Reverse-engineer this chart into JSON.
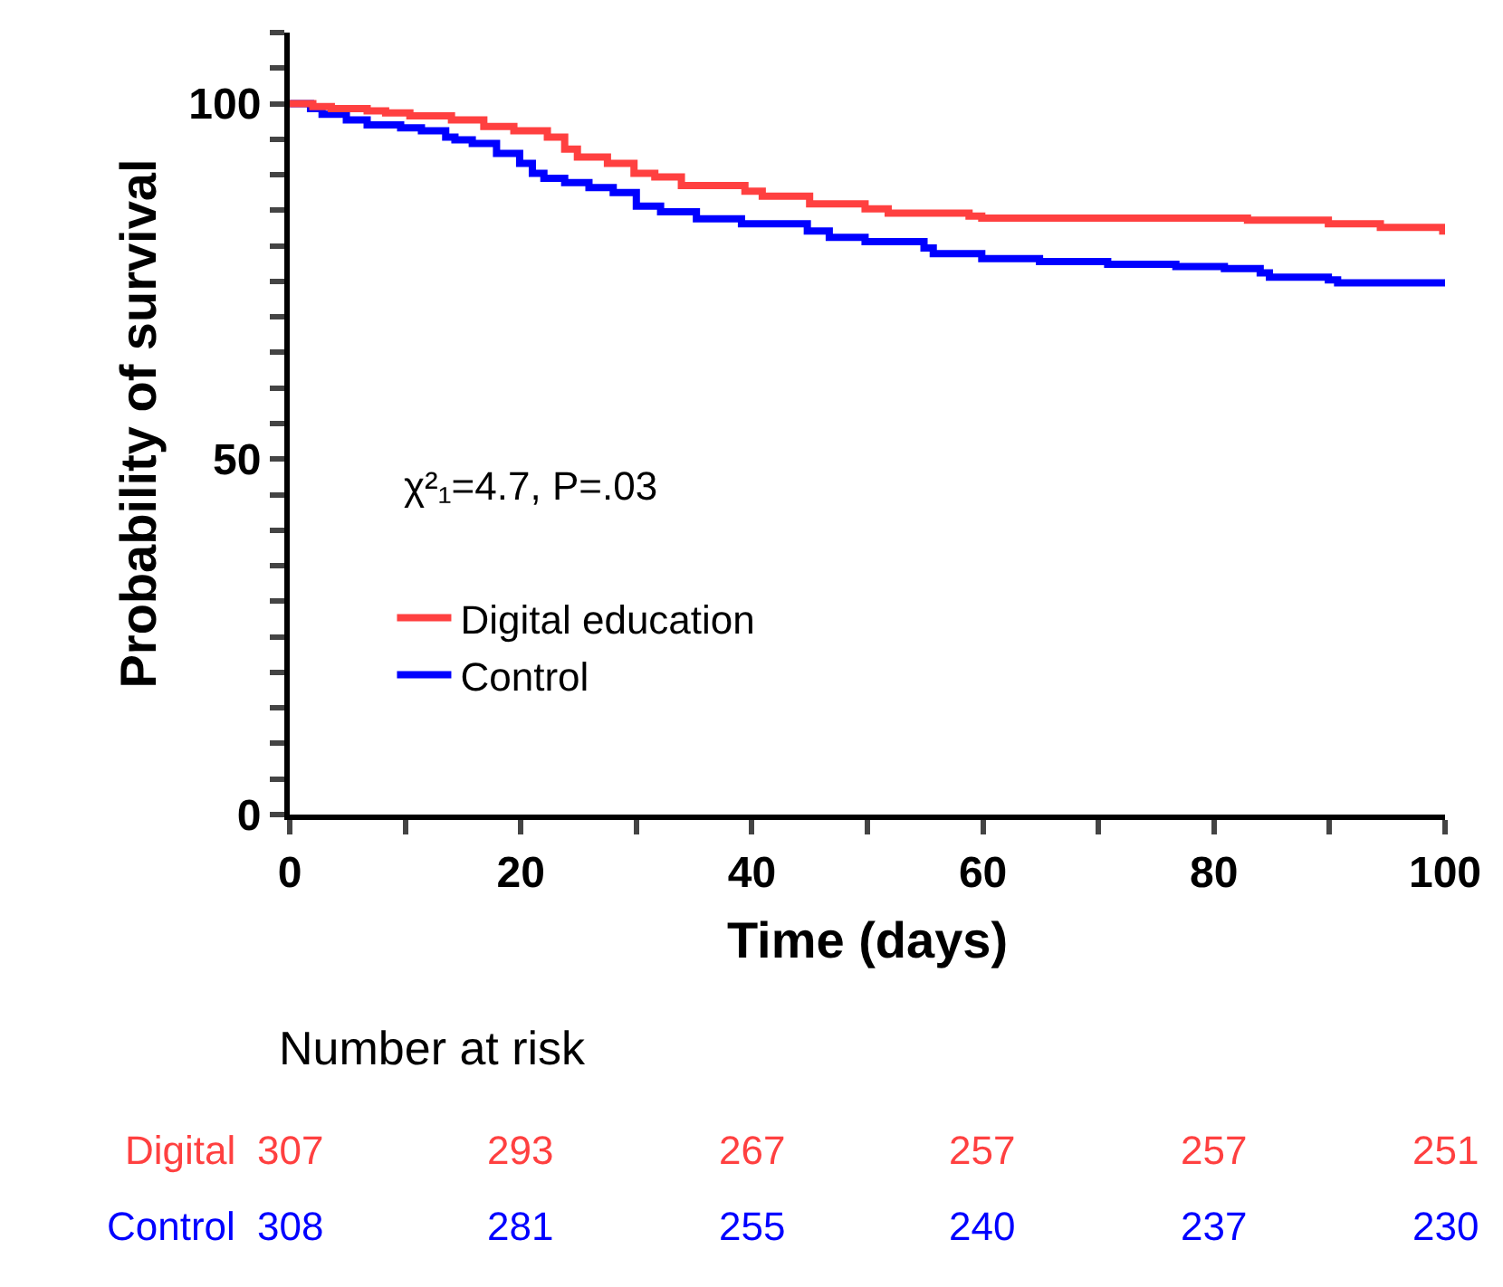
{
  "chart_data": {
    "type": "step",
    "xlabel": "Time (days)",
    "ylabel": "Probability of survival",
    "xlim": [
      0,
      100
    ],
    "ylim": [
      0,
      110
    ],
    "xticks": [
      0,
      {
        "value": 10,
        "label": null
      },
      20,
      {
        "value": 30,
        "label": null
      },
      40,
      {
        "value": 50,
        "label": null
      },
      60,
      {
        "value": 70,
        "label": null
      },
      80,
      {
        "value": 90,
        "label": null
      },
      100
    ],
    "yticks": [
      0,
      {
        "value": 5,
        "label": null
      },
      {
        "value": 10,
        "label": null
      },
      {
        "value": 15,
        "label": null
      },
      {
        "value": 20,
        "label": null
      },
      {
        "value": 25,
        "label": null
      },
      {
        "value": 30,
        "label": null
      },
      {
        "value": 35,
        "label": null
      },
      {
        "value": 40,
        "label": null
      },
      {
        "value": 45,
        "label": null
      },
      50,
      {
        "value": 55,
        "label": null
      },
      {
        "value": 60,
        "label": null
      },
      {
        "value": 65,
        "label": null
      },
      {
        "value": 70,
        "label": null
      },
      {
        "value": 75,
        "label": null
      },
      {
        "value": 80,
        "label": null
      },
      {
        "value": 85,
        "label": null
      },
      {
        "value": 90,
        "label": null
      },
      {
        "value": 95,
        "label": null
      },
      100,
      {
        "value": 105,
        "label": null
      },
      {
        "value": 110,
        "label": null
      }
    ],
    "legend": "left",
    "marker": "none",
    "line_style": "solid",
    "series": [
      {
        "name": "Digital education",
        "color": "#ff4040",
        "x": [
          0,
          2,
          3.6,
          5.7,
          6.7,
          8.3,
          10.4,
          14,
          16.8,
          19.4,
          22.3,
          23.8,
          24.9,
          27.5,
          29.8,
          31.6,
          33.9,
          39.4,
          40.9,
          45,
          49.8,
          51.8,
          58.8,
          59.9,
          82.9,
          89.9,
          94.4,
          99.8,
          100
        ],
        "values": [
          100,
          99.6,
          99.3,
          99.3,
          99,
          98.7,
          98.3,
          97.7,
          96.8,
          96.2,
          95.3,
          93.6,
          92.5,
          91.6,
          90.2,
          89.7,
          88.5,
          87.7,
          87,
          85.9,
          85.2,
          84.6,
          84.2,
          83.9,
          83.6,
          83.1,
          82.6,
          82.1,
          82.1
        ]
      },
      {
        "name": "Control",
        "color": "#0000ff",
        "x": [
          0,
          1.8,
          2.8,
          4.9,
          6.7,
          9.6,
          11.4,
          13.5,
          14.3,
          15.8,
          17.9,
          19.9,
          21,
          22,
          23.8,
          25.9,
          28,
          30,
          32.1,
          35.2,
          39.1,
          44.8,
          46.7,
          49.8,
          54.9,
          55.7,
          59.9,
          64.9,
          70.8,
          76.7,
          80.9,
          84,
          84.8,
          89.9,
          90.7,
          100
        ],
        "values": [
          100,
          99.3,
          98.5,
          97.7,
          97,
          96.6,
          96.2,
          95.3,
          94.9,
          94.4,
          93,
          91.6,
          90.2,
          89.5,
          88.9,
          88.2,
          87.5,
          85.6,
          84.8,
          83.8,
          83.1,
          82.1,
          81.2,
          80.6,
          79.7,
          78.9,
          78.2,
          77.8,
          77.4,
          77.1,
          76.8,
          76.2,
          75.6,
          75.2,
          74.8,
          74.8
        ]
      }
    ],
    "annotations": [
      "χ²₁=4.7, P=.03",
      "Number at risk",
      "Digital",
      "307",
      "293",
      "267",
      "257",
      "257",
      "251",
      "Control",
      "308",
      "281",
      "255",
      "240",
      "237",
      "230"
    ]
  }
}
